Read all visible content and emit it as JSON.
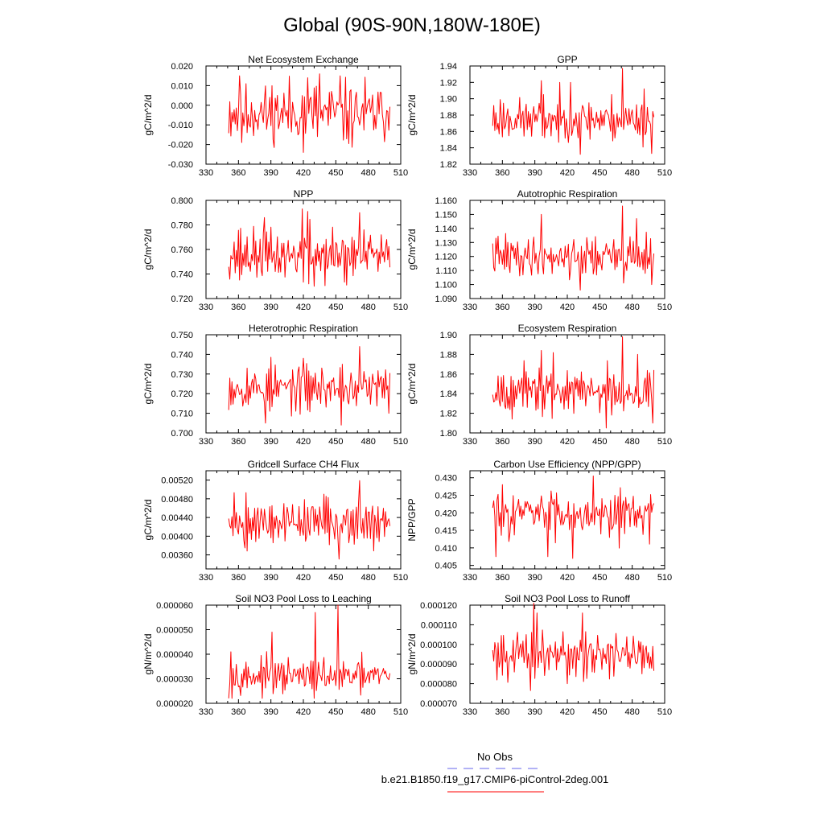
{
  "title": "Global (90S-90N,180W-180E)",
  "colors": {
    "model": "#ff0000",
    "obs": "#6666ee"
  },
  "legend": {
    "obs_label": "No Obs",
    "model_label": "b.e21.B1850.f19_g17.CMIP6-piControl-2deg.001"
  },
  "chart_data": [
    {
      "type": "line",
      "title": "Net Ecosystem Exchange",
      "ylabel": "gC/m^2/d",
      "xlim": [
        330,
        510
      ],
      "ylim": [
        -0.03,
        0.02
      ],
      "xticks": [
        330,
        360,
        390,
        420,
        450,
        480,
        510
      ],
      "yticks": [
        -0.03,
        -0.02,
        -0.01,
        0,
        0.01,
        0.02
      ],
      "ytick_labels": [
        "-0.030",
        "-0.020",
        "-0.010",
        "0.000",
        "0.010",
        "0.020"
      ],
      "grid": false,
      "x_start": 351,
      "x_end": 500,
      "series": [
        {
          "mean": -0.004,
          "amplitude": 0.009,
          "min": -0.025,
          "max": 0.016,
          "seed": 11,
          "peaks": [
            [
              361,
              0.015
            ],
            [
              424,
              0.014
            ],
            [
              435,
              0.016
            ],
            [
              454,
              0.015
            ],
            [
              420,
              -0.024
            ],
            [
              363,
              -0.019
            ]
          ]
        }
      ]
    },
    {
      "type": "line",
      "title": "GPP",
      "ylabel": "gC/m^2/d",
      "xlim": [
        330,
        510
      ],
      "ylim": [
        1.82,
        1.94
      ],
      "xticks": [
        330,
        360,
        390,
        420,
        450,
        480,
        510
      ],
      "yticks": [
        1.82,
        1.84,
        1.86,
        1.88,
        1.9,
        1.92,
        1.94
      ],
      "ytick_labels": [
        "1.82",
        "1.84",
        "1.86",
        "1.88",
        "1.90",
        "1.92",
        "1.94"
      ],
      "grid": false,
      "x_start": 351,
      "x_end": 500,
      "series": [
        {
          "mean": 1.875,
          "amplitude": 0.014,
          "min": 1.832,
          "max": 1.938,
          "seed": 23,
          "peaks": [
            [
              471,
              1.937
            ],
            [
              396,
              1.922
            ],
            [
              423,
              1.92
            ],
            [
              491,
              1.912
            ],
            [
              432,
              1.832
            ],
            [
              498,
              1.833
            ]
          ]
        }
      ]
    },
    {
      "type": "line",
      "title": "NPP",
      "ylabel": "gC/m^2/d",
      "xlim": [
        330,
        510
      ],
      "ylim": [
        0.72,
        0.8
      ],
      "xticks": [
        330,
        360,
        390,
        420,
        450,
        480,
        510
      ],
      "yticks": [
        0.72,
        0.74,
        0.76,
        0.78,
        0.8
      ],
      "ytick_labels": [
        "0.720",
        "0.740",
        "0.760",
        "0.780",
        "0.800"
      ],
      "grid": false,
      "x_start": 351,
      "x_end": 500,
      "series": [
        {
          "mean": 0.755,
          "amplitude": 0.011,
          "min": 0.73,
          "max": 0.793,
          "seed": 37,
          "peaks": [
            [
              419,
              0.793
            ],
            [
              424,
              0.791
            ],
            [
              472,
              0.79
            ],
            [
              384,
              0.786
            ],
            [
              430,
              0.73
            ],
            [
              460,
              0.731
            ]
          ]
        }
      ]
    },
    {
      "type": "line",
      "title": "Autotrophic Respiration",
      "ylabel": "gC/m^2/d",
      "xlim": [
        330,
        510
      ],
      "ylim": [
        1.09,
        1.16
      ],
      "xticks": [
        330,
        360,
        390,
        420,
        450,
        480,
        510
      ],
      "yticks": [
        1.09,
        1.1,
        1.11,
        1.12,
        1.13,
        1.14,
        1.15,
        1.16
      ],
      "ytick_labels": [
        "1.090",
        "1.100",
        "1.110",
        "1.120",
        "1.130",
        "1.140",
        "1.150",
        "1.160"
      ],
      "grid": false,
      "x_start": 351,
      "x_end": 500,
      "series": [
        {
          "mean": 1.12,
          "amplitude": 0.008,
          "min": 1.096,
          "max": 1.156,
          "seed": 41,
          "peaks": [
            [
              471,
              1.156
            ],
            [
              396,
              1.15
            ],
            [
              484,
              1.147
            ],
            [
              432,
              1.096
            ],
            [
              498,
              1.1
            ]
          ]
        }
      ]
    },
    {
      "type": "line",
      "title": "Heterotrophic Respiration",
      "ylabel": "gC/m^2/d",
      "xlim": [
        330,
        510
      ],
      "ylim": [
        0.7,
        0.75
      ],
      "xticks": [
        330,
        360,
        390,
        420,
        450,
        480,
        510
      ],
      "yticks": [
        0.7,
        0.71,
        0.72,
        0.73,
        0.74,
        0.75
      ],
      "ytick_labels": [
        "0.700",
        "0.710",
        "0.720",
        "0.730",
        "0.740",
        "0.750"
      ],
      "grid": false,
      "x_start": 351,
      "x_end": 500,
      "series": [
        {
          "mean": 0.723,
          "amplitude": 0.006,
          "min": 0.704,
          "max": 0.744,
          "seed": 53,
          "peaks": [
            [
              472,
              0.744
            ],
            [
              420,
              0.738
            ],
            [
              456,
              0.735
            ],
            [
              455,
              0.704
            ],
            [
              385,
              0.705
            ],
            [
              499,
              0.71
            ]
          ]
        }
      ]
    },
    {
      "type": "line",
      "title": "Ecosystem Respiration",
      "ylabel": "gC/m^2/d",
      "xlim": [
        330,
        510
      ],
      "ylim": [
        1.8,
        1.9
      ],
      "xticks": [
        330,
        360,
        390,
        420,
        450,
        480,
        510
      ],
      "yticks": [
        1.8,
        1.82,
        1.84,
        1.86,
        1.88,
        1.9
      ],
      "ytick_labels": [
        "1.80",
        "1.82",
        "1.84",
        "1.86",
        "1.88",
        "1.90"
      ],
      "grid": false,
      "x_start": 351,
      "x_end": 500,
      "series": [
        {
          "mean": 1.843,
          "amplitude": 0.012,
          "min": 1.804,
          "max": 1.898,
          "seed": 67,
          "peaks": [
            [
              471,
              1.898
            ],
            [
              396,
              1.884
            ],
            [
              485,
              1.88
            ],
            [
              456,
              1.805
            ],
            [
              499,
              1.81
            ]
          ]
        }
      ]
    },
    {
      "type": "line",
      "title": "Gridcell Surface CH4 Flux",
      "ylabel": "gC/m^2/d",
      "xlim": [
        330,
        510
      ],
      "ylim": [
        0.0033,
        0.0054
      ],
      "xticks": [
        330,
        360,
        390,
        420,
        450,
        480,
        510
      ],
      "yticks": [
        0.0036,
        0.004,
        0.0044,
        0.0048,
        0.0052
      ],
      "ytick_labels": [
        "0.00360",
        "0.00400",
        "0.00440",
        "0.00480",
        "0.00520"
      ],
      "grid": false,
      "x_start": 351,
      "x_end": 500,
      "series": [
        {
          "mean": 0.00432,
          "amplitude": 0.00026,
          "min": 0.00351,
          "max": 0.00519,
          "seed": 79,
          "peaks": [
            [
              472,
              0.00519
            ],
            [
              356,
              0.00493
            ],
            [
              453,
              0.00351
            ],
            [
              366,
              0.00375
            ]
          ]
        }
      ]
    },
    {
      "type": "line",
      "title": "Carbon Use Efficiency (NPP/GPP)",
      "ylabel": "NPP/GPP",
      "xlim": [
        330,
        510
      ],
      "ylim": [
        0.404,
        0.432
      ],
      "xticks": [
        330,
        360,
        390,
        420,
        450,
        480,
        510
      ],
      "yticks": [
        0.405,
        0.41,
        0.415,
        0.42,
        0.425,
        0.43
      ],
      "ytick_labels": [
        "0.405",
        "0.410",
        "0.415",
        "0.420",
        "0.425",
        "0.430"
      ],
      "grid": false,
      "x_start": 351,
      "x_end": 500,
      "series": [
        {
          "mean": 0.42,
          "amplitude": 0.0035,
          "min": 0.407,
          "max": 0.4305,
          "seed": 83,
          "peaks": [
            [
              444,
              0.4305
            ],
            [
              354,
              0.4075
            ],
            [
              425,
              0.407
            ],
            [
              402,
              0.4075
            ]
          ]
        }
      ]
    },
    {
      "type": "line",
      "title": "Soil NO3 Pool Loss to Leaching",
      "ylabel": "gN/m^2/d",
      "xlim": [
        330,
        510
      ],
      "ylim": [
        2e-05,
        6e-05
      ],
      "xticks": [
        330,
        360,
        390,
        420,
        450,
        480,
        510
      ],
      "yticks": [
        2e-05,
        3e-05,
        4e-05,
        5e-05,
        6e-05
      ],
      "ytick_labels": [
        "0.000020",
        "0.000030",
        "0.000040",
        "0.000050",
        "0.000060"
      ],
      "grid": false,
      "x_start": 351,
      "x_end": 500,
      "series": [
        {
          "mean": 3.1e-05,
          "amplitude": 3.5e-06,
          "min": 2.2e-05,
          "max": 6e-05,
          "seed": 97,
          "peaks": [
            [
              452,
              6e-05
            ],
            [
              431,
              5.7e-05
            ],
            [
              391,
              4.9e-05
            ],
            [
              353,
              4.1e-05
            ],
            [
              351,
              2.2e-05
            ]
          ]
        }
      ]
    },
    {
      "type": "line",
      "title": "Soil NO3 Pool Loss to Runoff",
      "ylabel": "gN/m^2/d",
      "xlim": [
        330,
        510
      ],
      "ylim": [
        7e-05,
        0.00012
      ],
      "xticks": [
        330,
        360,
        390,
        420,
        450,
        480,
        510
      ],
      "yticks": [
        7e-05,
        8e-05,
        9e-05,
        0.0001,
        0.00011,
        0.00012
      ],
      "ytick_labels": [
        "0.000070",
        "0.000080",
        "0.000090",
        "0.000100",
        "0.000110",
        "0.000120"
      ],
      "grid": false,
      "x_start": 351,
      "x_end": 500,
      "series": [
        {
          "mean": 9.5e-05,
          "amplitude": 6e-06,
          "min": 7.65e-05,
          "max": 0.000121,
          "seed": 101,
          "peaks": [
            [
              389,
              0.000121
            ],
            [
              392,
              0.000116
            ],
            [
              434,
              0.000116
            ],
            [
              386,
              7.65e-05
            ],
            [
              420,
              8e-05
            ]
          ]
        }
      ]
    }
  ]
}
